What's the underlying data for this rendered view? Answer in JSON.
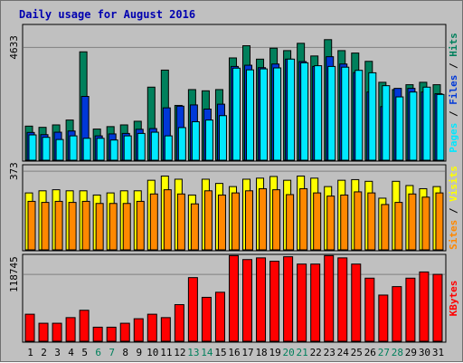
{
  "colors": {
    "background": "#c0c0c0",
    "title": "#0000b0",
    "hits": "#00805c",
    "files": "#0038d8",
    "pages": "#00e8ff",
    "visits": "#ffff00",
    "sites": "#ff8800",
    "kbytes": "#ff0000",
    "weekend_label": "#00805c",
    "weekday_label": "#000000",
    "gridline": "#808080",
    "separator": "#000000"
  },
  "chart_data": {
    "type": "bar",
    "title": "Daily usage for August 2016",
    "categories": [
      "1",
      "2",
      "3",
      "4",
      "5",
      "6",
      "7",
      "8",
      "9",
      "10",
      "11",
      "12",
      "13",
      "14",
      "15",
      "16",
      "17",
      "18",
      "19",
      "20",
      "21",
      "22",
      "23",
      "24",
      "25",
      "26",
      "27",
      "28",
      "29",
      "30",
      "31"
    ],
    "weekend_days": [
      6,
      7,
      13,
      14,
      20,
      21,
      27,
      28
    ],
    "panels": [
      {
        "id": "hits-panel",
        "tick_label": "4633",
        "tick_value": 4633,
        "ymax": 5500,
        "series": [
          {
            "name": "Hits",
            "values": [
              1400,
              1350,
              1450,
              1650,
              4450,
              1280,
              1380,
              1450,
              1600,
              3000,
              3700,
              2250,
              2900,
              2850,
              2900,
              4200,
              4700,
              4150,
              4600,
              4500,
              4800,
              4280,
              4950,
              4500,
              4400,
              4060,
              3200,
              2900,
              3100,
              3200,
              3100
            ]
          },
          {
            "name": "Files",
            "values": [
              1140,
              1050,
              1150,
              1200,
              2620,
              1000,
              1080,
              1100,
              1270,
              1300,
              2150,
              2220,
              2270,
              2100,
              2300,
              3850,
              3900,
              3800,
              3950,
              4150,
              4050,
              3850,
              4250,
              3950,
              3600,
              2800,
              2200,
              2950,
              2950,
              2800,
              2730
            ]
          },
          {
            "name": "Pages",
            "values": [
              1040,
              940,
              850,
              1000,
              900,
              900,
              830,
              1000,
              1100,
              1150,
              1000,
              1340,
              1580,
              1650,
              1830,
              3780,
              3710,
              3750,
              3790,
              4150,
              4000,
              3880,
              3850,
              3820,
              3690,
              3590,
              3060,
              2600,
              2800,
              3000,
              2700
            ]
          }
        ]
      },
      {
        "id": "visits-panel",
        "tick_label": "373",
        "tick_value": 373,
        "ymax": 395,
        "series": [
          {
            "name": "Visits",
            "values": [
              270,
              280,
              285,
              280,
              280,
              260,
              270,
              280,
              280,
              330,
              350,
              335,
              260,
              335,
              315,
              300,
              335,
              340,
              348,
              330,
              350,
              340,
              300,
              330,
              333,
              325,
              245,
              325,
              305,
              290,
              300
            ]
          },
          {
            "name": "Sites",
            "values": [
              230,
              225,
              230,
              225,
              230,
              220,
              220,
              220,
              230,
              265,
              285,
              265,
              218,
              280,
              260,
              270,
              280,
              290,
              285,
              262,
              290,
              270,
              255,
              260,
              275,
              270,
              215,
              225,
              265,
              250,
              270
            ]
          }
        ]
      },
      {
        "id": "kbytes-panel",
        "tick_label": "118745",
        "tick_value": 118745,
        "ymax": 151000,
        "series": [
          {
            "name": "KBytes",
            "values": [
              48000,
              32000,
              32000,
              42000,
              55000,
              25000,
              25000,
              32000,
              40000,
              48000,
              42000,
              65000,
              113000,
              78000,
              87000,
              152000,
              145000,
              148000,
              142000,
              150000,
              137000,
              137000,
              152000,
              148000,
              137000,
              112000,
              82000,
              97000,
              112000,
              123000,
              118745
            ]
          }
        ]
      }
    ],
    "side_labels": [
      {
        "parts": [
          {
            "text": "Pages",
            "series": "Pages"
          },
          {
            "text": " / ",
            "series": null
          },
          {
            "text": "Files",
            "series": "Files"
          },
          {
            "text": " / ",
            "series": null
          },
          {
            "text": "Hits",
            "series": "Hits"
          }
        ]
      },
      {
        "parts": [
          {
            "text": "Sites",
            "series": "Sites"
          },
          {
            "text": " / ",
            "series": null
          },
          {
            "text": "Visits",
            "series": "Visits"
          }
        ]
      },
      {
        "parts": [
          {
            "text": "KBytes",
            "series": "KBytes"
          }
        ]
      }
    ]
  }
}
